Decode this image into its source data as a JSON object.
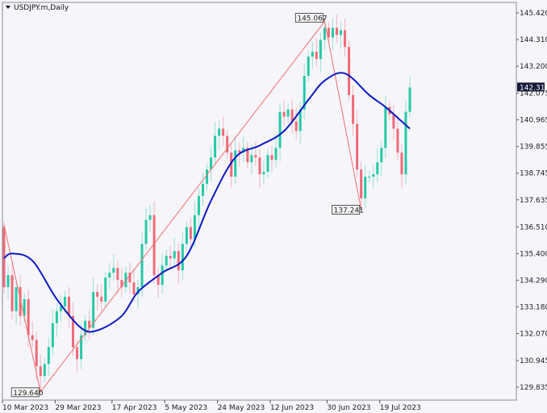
{
  "header": {
    "title": "USDJPY.m,Daily",
    "menu_icon": "triangle-down-icon"
  },
  "colors": {
    "bull": "#26c9a6",
    "bear": "#f06a78",
    "ma": "#0b1ac4",
    "zigzag": "#f26f6f",
    "background": "#f5f5fa",
    "price_label_bg": "#151a3a"
  },
  "chart_data": {
    "type": "candlestick",
    "title": "USDJPY.m,Daily",
    "ylim": [
      129.5,
      145.75
    ],
    "grid": false,
    "y_ticks": [
      "145.420",
      "144.310",
      "143.200",
      "142.075",
      "140.965",
      "139.855",
      "138.745",
      "137.635",
      "136.510",
      "135.400",
      "134.290",
      "133.180",
      "132.070",
      "130.945",
      "129.835"
    ],
    "x_labels": [
      {
        "label": "10 Mar 2023",
        "bar": 0
      },
      {
        "label": "29 Mar 2023",
        "bar": 13
      },
      {
        "label": "17 Apr 2023",
        "bar": 27
      },
      {
        "label": "5 May 2023",
        "bar": 40
      },
      {
        "label": "24 May 2023",
        "bar": 53
      },
      {
        "label": "12 Jun 2023",
        "bar": 66
      },
      {
        "label": "30 Jun 2023",
        "bar": 80
      },
      {
        "label": "19 Jul 2023",
        "bar": 93
      }
    ],
    "first_open": 136.5,
    "closes": [
      134.0,
      134.5,
      133.0,
      134.0,
      132.8,
      133.5,
      132.0,
      131.8,
      130.7,
      130.3,
      130.8,
      131.5,
      132.5,
      133.0,
      133.2,
      133.6,
      132.8,
      131.5,
      131.0,
      132.0,
      132.6,
      132.3,
      133.8,
      133.6,
      133.4,
      134.4,
      134.6,
      134.8,
      134.3,
      134.0,
      134.6,
      134.2,
      133.7,
      134.0,
      135.8,
      136.8,
      137.0,
      134.5,
      134.1,
      134.9,
      135.3,
      135.2,
      135.5,
      134.7,
      135.8,
      136.5,
      136.0,
      137.0,
      137.8,
      138.3,
      138.9,
      139.4,
      140.3,
      140.6,
      140.3,
      139.6,
      138.6,
      139.7,
      139.6,
      139.8,
      139.2,
      139.5,
      139.4,
      138.7,
      138.8,
      139.5,
      139.3,
      139.8,
      141.3,
      141.1,
      141.4,
      140.9,
      140.5,
      141.4,
      142.8,
      143.6,
      143.8,
      143.5,
      144.3,
      144.8,
      144.4,
      144.8,
      144.5,
      144.7,
      144.0,
      142.0,
      140.8,
      138.9,
      137.7,
      138.6,
      138.6,
      138.7,
      139.2,
      139.8,
      141.5,
      141.2,
      140.6,
      139.6,
      138.7,
      141.3,
      142.316
    ],
    "moving_average": [
      [
        0,
        135.2
      ],
      [
        2,
        135.4
      ],
      [
        7,
        135.1
      ],
      [
        13,
        133.5
      ],
      [
        19,
        132.3
      ],
      [
        23,
        132.2
      ],
      [
        29,
        132.8
      ],
      [
        33,
        133.8
      ],
      [
        39,
        134.6
      ],
      [
        45,
        135.3
      ],
      [
        51,
        137.6
      ],
      [
        57,
        139.4
      ],
      [
        63,
        139.9
      ],
      [
        69,
        140.5
      ],
      [
        75,
        141.8
      ],
      [
        79,
        142.6
      ],
      [
        84,
        142.9
      ],
      [
        90,
        142.0
      ],
      [
        94,
        141.5
      ],
      [
        98,
        140.9
      ],
      [
        100,
        140.6
      ]
    ],
    "zigzag": [
      [
        0,
        136.6
      ],
      [
        9,
        129.64
      ],
      [
        79,
        145.067
      ],
      [
        88,
        137.241
      ]
    ],
    "zigzag_labels": [
      {
        "bar": 9,
        "value": "129.640"
      },
      {
        "bar": 79,
        "value": "145.067"
      },
      {
        "bar": 88,
        "value": "137.241"
      }
    ],
    "extremes": {
      "9": 129.64,
      "79": 145.067,
      "88": 137.241,
      "100": 142.75,
      "35": 137.3
    },
    "current_price": "142.316"
  }
}
